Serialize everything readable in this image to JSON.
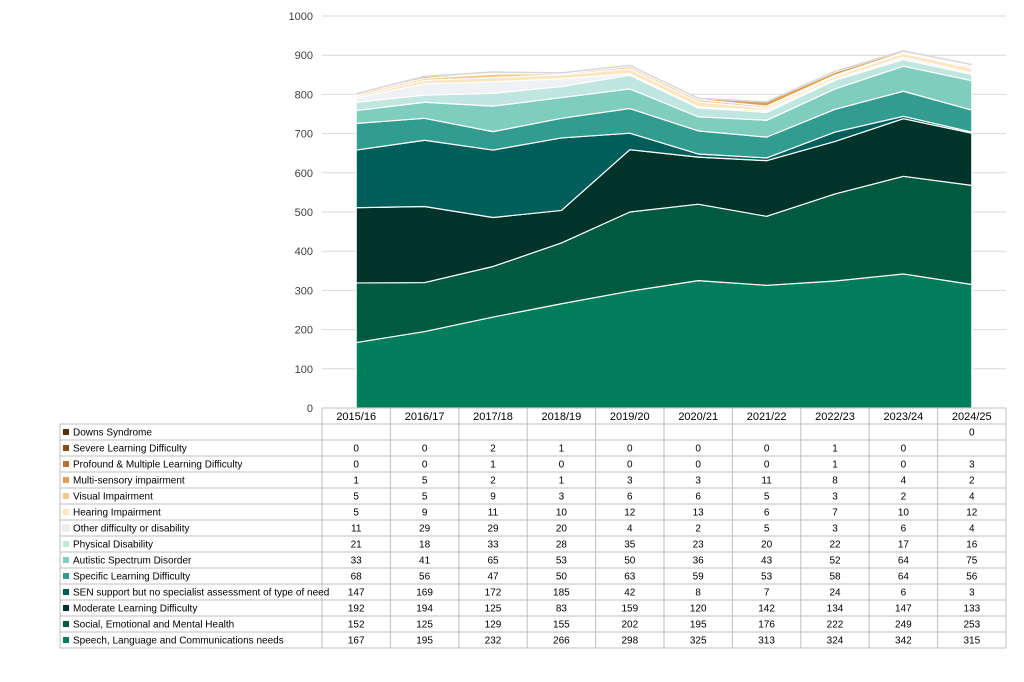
{
  "chart_data": {
    "type": "area",
    "stacked": true,
    "title": "",
    "xlabel": "",
    "ylabel": "",
    "ylim": [
      0,
      1000
    ],
    "yticks": [
      0,
      100,
      200,
      300,
      400,
      500,
      600,
      700,
      800,
      900,
      1000
    ],
    "grid": true,
    "legend": "data table below chart",
    "categories": [
      "2015/16",
      "2016/17",
      "2017/18",
      "2018/19",
      "2019/20",
      "2020/21",
      "2021/22",
      "2022/23",
      "2023/24",
      "2024/25"
    ],
    "series": [
      {
        "name": "Speech, Language and Communications needs",
        "color": "#007D5A",
        "values": [
          167,
          195,
          232,
          266,
          298,
          325,
          313,
          324,
          342,
          315
        ]
      },
      {
        "name": "Social, Emotional and Mental Health",
        "color": "#005A40",
        "values": [
          152,
          125,
          129,
          155,
          202,
          195,
          176,
          222,
          249,
          253
        ]
      },
      {
        "name": "Moderate Learning Difficulty",
        "color": "#00332A",
        "values": [
          192,
          194,
          125,
          83,
          159,
          120,
          142,
          134,
          147,
          133
        ]
      },
      {
        "name": "SEN support but no specialist assessment of type of need",
        "color": "#005E5A",
        "values": [
          147,
          169,
          172,
          185,
          42,
          8,
          7,
          24,
          6,
          3
        ]
      },
      {
        "name": "Specific Learning Difficulty",
        "color": "#339C90",
        "values": [
          68,
          56,
          47,
          50,
          63,
          59,
          53,
          58,
          64,
          56
        ]
      },
      {
        "name": "Autistic Spectrum Disorder",
        "color": "#7FCDBF",
        "values": [
          33,
          41,
          65,
          53,
          50,
          36,
          43,
          52,
          64,
          75
        ]
      },
      {
        "name": "Physical Disability",
        "color": "#BFE6DF",
        "values": [
          21,
          18,
          33,
          28,
          35,
          23,
          20,
          22,
          17,
          16
        ]
      },
      {
        "name": "Other difficulty or disability",
        "color": "#F0F1F5",
        "values": [
          11,
          29,
          29,
          20,
          4,
          2,
          5,
          3,
          6,
          4
        ]
      },
      {
        "name": "Hearing Impairment",
        "color": "#FCE6C0",
        "values": [
          5,
          9,
          11,
          10,
          12,
          13,
          6,
          7,
          10,
          12
        ]
      },
      {
        "name": "Visual Impairment",
        "color": "#F4C88A",
        "values": [
          5,
          5,
          9,
          3,
          6,
          6,
          5,
          3,
          2,
          4
        ]
      },
      {
        "name": "Multi-sensory impairment",
        "color": "#E0A14E",
        "values": [
          1,
          5,
          2,
          1,
          3,
          3,
          11,
          8,
          4,
          2
        ]
      },
      {
        "name": "Profound & Multiple Learning Difficulty",
        "color": "#B8732E",
        "values": [
          0,
          0,
          1,
          0,
          0,
          0,
          0,
          1,
          0,
          3
        ]
      },
      {
        "name": "Severe Learning Difficulty",
        "color": "#8A4A1A",
        "values": [
          0,
          0,
          2,
          1,
          0,
          0,
          0,
          1,
          0,
          null
        ]
      },
      {
        "name": "Downs Syndrome",
        "color": "#5A2D0E",
        "values": [
          null,
          null,
          null,
          null,
          null,
          null,
          null,
          null,
          null,
          0
        ]
      }
    ]
  }
}
